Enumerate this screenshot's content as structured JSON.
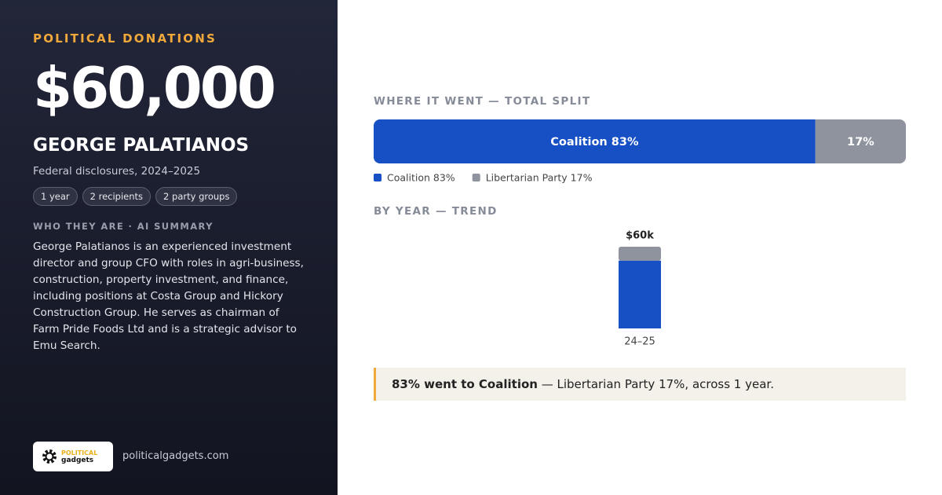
{
  "eyebrow": "POLITICAL DONATIONS",
  "amount": "$60,000",
  "name": "GEORGE PALATIANOS",
  "subtitle": "Federal disclosures, 2024–2025",
  "chips": [
    "1 year",
    "2 recipients",
    "2 party groups"
  ],
  "summary_heading": "WHO THEY ARE · AI SUMMARY",
  "summary": "George Palatianos is an experienced investment director and group CFO with roles in agri-business, construction, property investment, and finance, including positions at Costa Group and Hickory Construction Group. He serves as chairman of Farm Pride Foods Ltd and is a strategic advisor to Emu Search.",
  "footer": {
    "logo_top": "POLITICAL",
    "logo_bottom": "gadgets",
    "url": "politicalgadgets.com"
  },
  "chart_data": [
    {
      "type": "stacked-bar-horizontal",
      "title": "WHERE IT WENT — TOTAL SPLIT",
      "xlim": [
        0,
        100
      ],
      "series": [
        {
          "name": "Coalition",
          "color": "#1650c4",
          "values": [
            83
          ],
          "value_labels": [
            "Coalition 83%"
          ]
        },
        {
          "name": "Libertarian Party",
          "color": "#8e939d",
          "values": [
            17
          ],
          "value_labels": [
            "17%"
          ]
        }
      ],
      "legend_labels": [
        "Coalition 83%",
        "Libertarian Party 17%"
      ]
    },
    {
      "type": "stacked-bar",
      "title": "BY YEAR — TREND",
      "categories": [
        "24–25"
      ],
      "ylim": [
        0,
        60000
      ],
      "series": [
        {
          "name": "Coalition",
          "color": "#1650c4",
          "values": [
            49800
          ]
        },
        {
          "name": "Libertarian Party",
          "color": "#8e939d",
          "values": [
            10200
          ]
        }
      ],
      "totals": [
        60000
      ],
      "total_labels": [
        "$60k"
      ]
    }
  ],
  "callout": {
    "bold": "83% went to Coalition",
    "text": "— Libertarian Party 17%, across 1 year."
  }
}
